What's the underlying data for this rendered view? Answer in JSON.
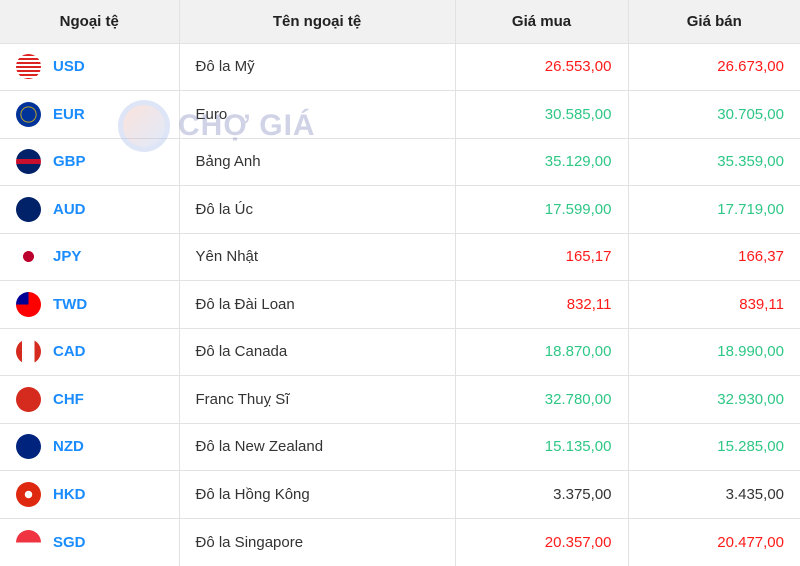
{
  "headers": [
    "Ngoại tệ",
    "Tên ngoại tệ",
    "Giá mua",
    "Giá bán"
  ],
  "watermark": "CHỢ GIÁ",
  "colors": {
    "up": "#ff1a1a",
    "down": "#2ec785",
    "code": "#1a8cff"
  },
  "rows": [
    {
      "code": "USD",
      "name": "Đô la Mỹ",
      "buy": "26.553,00",
      "sell": "26.673,00",
      "trend": "up",
      "flag": "us-flag-icon"
    },
    {
      "code": "EUR",
      "name": "Euro",
      "buy": "30.585,00",
      "sell": "30.705,00",
      "trend": "down",
      "flag": "eu-flag-icon"
    },
    {
      "code": "GBP",
      "name": "Bảng Anh",
      "buy": "35.129,00",
      "sell": "35.359,00",
      "trend": "down",
      "flag": "uk-flag-icon"
    },
    {
      "code": "AUD",
      "name": "Đô la Úc",
      "buy": "17.599,00",
      "sell": "17.719,00",
      "trend": "down",
      "flag": "au-flag-icon"
    },
    {
      "code": "JPY",
      "name": "Yên Nhật",
      "buy": "165,17",
      "sell": "166,37",
      "trend": "up",
      "flag": "jp-flag-icon"
    },
    {
      "code": "TWD",
      "name": "Đô la Đài Loan",
      "buy": "832,11",
      "sell": "839,11",
      "trend": "up",
      "flag": "tw-flag-icon"
    },
    {
      "code": "CAD",
      "name": "Đô la Canada",
      "buy": "18.870,00",
      "sell": "18.990,00",
      "trend": "down",
      "flag": "ca-flag-icon"
    },
    {
      "code": "CHF",
      "name": "Franc Thuỵ Sĩ",
      "buy": "32.780,00",
      "sell": "32.930,00",
      "trend": "down",
      "flag": "ch-flag-icon"
    },
    {
      "code": "NZD",
      "name": "Đô la New Zealand",
      "buy": "15.135,00",
      "sell": "15.285,00",
      "trend": "down",
      "flag": "nz-flag-icon"
    },
    {
      "code": "HKD",
      "name": "Đô la Hồng Kông",
      "buy": "3.375,00",
      "sell": "3.435,00",
      "trend": "same",
      "flag": "hk-flag-icon"
    },
    {
      "code": "SGD",
      "name": "Đô la Singapore",
      "buy": "20.357,00",
      "sell": "20.477,00",
      "trend": "up",
      "flag": "sg-flag-icon"
    }
  ]
}
